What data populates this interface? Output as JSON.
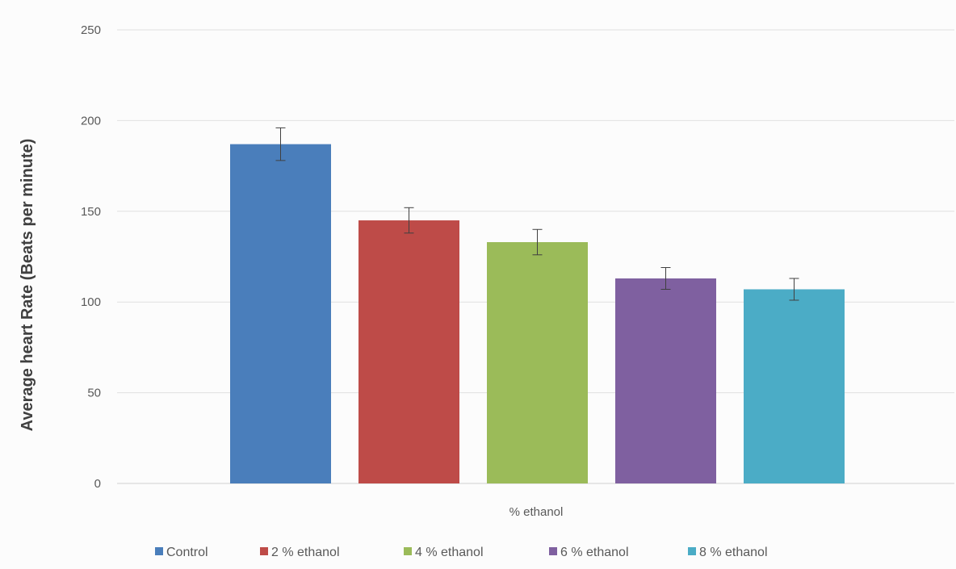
{
  "chart_data": {
    "type": "bar",
    "title": "",
    "xlabel": "% ethanol",
    "ylabel": "Average heart  Rate (Beats per minute)",
    "ylim": [
      0,
      250
    ],
    "yticks": [
      0,
      50,
      100,
      150,
      200,
      250
    ],
    "grid": true,
    "legend_position": "bottom",
    "series": [
      {
        "name": "Control",
        "value": 187,
        "error": 9,
        "color": "#4a7ebb"
      },
      {
        "name": "2 % ethanol",
        "value": 145,
        "error": 7,
        "color": "#be4b48"
      },
      {
        "name": "4 % ethanol",
        "value": 133,
        "error": 7,
        "color": "#9bbb59"
      },
      {
        "name": "6 % ethanol",
        "value": 113,
        "error": 6,
        "color": "#7f60a0"
      },
      {
        "name": "8 % ethanol",
        "value": 107,
        "error": 6,
        "color": "#4bacc6"
      }
    ]
  }
}
